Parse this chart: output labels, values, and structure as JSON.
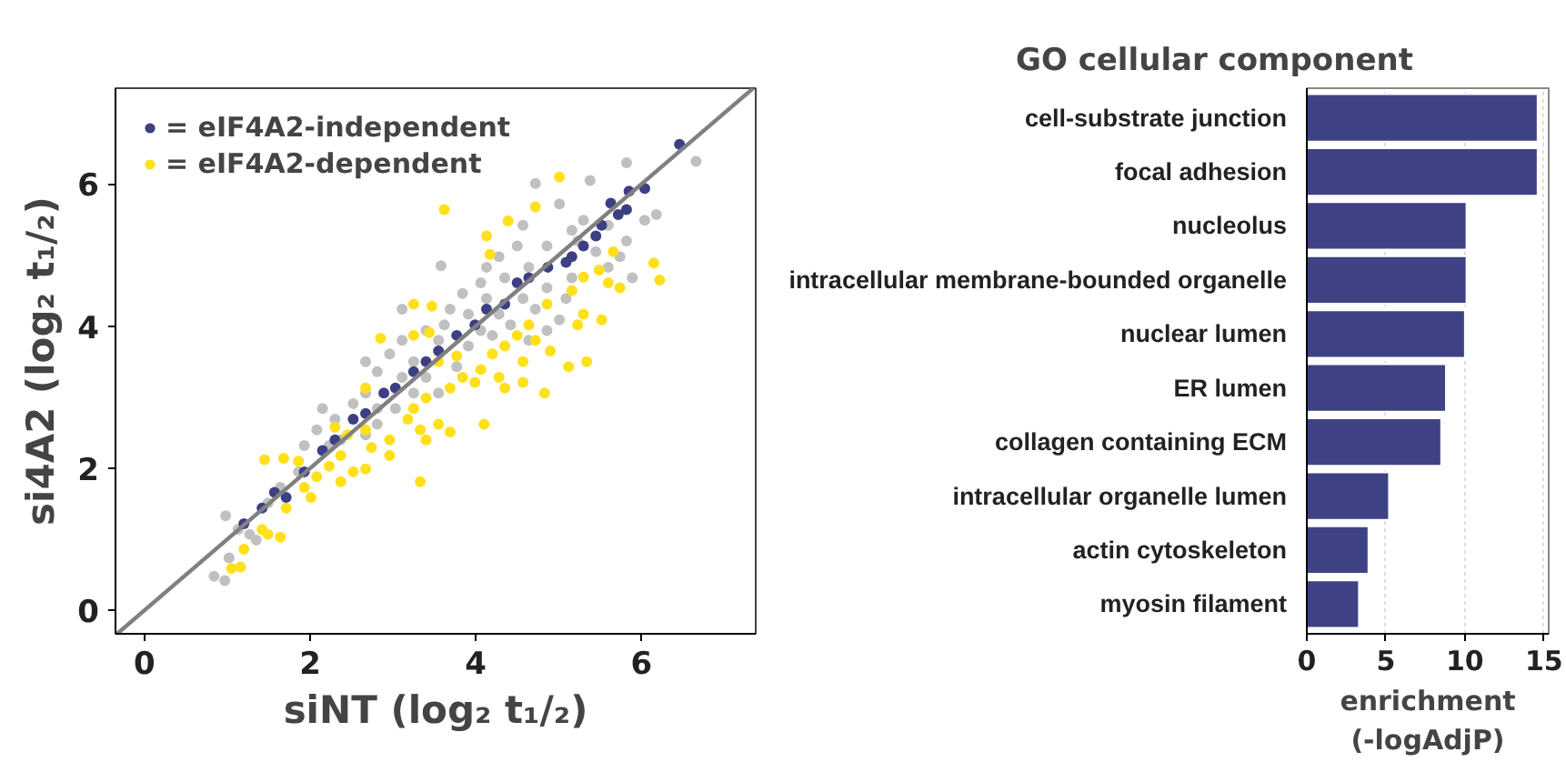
{
  "chart_data": [
    {
      "type": "scatter",
      "xlabel": "siNT (log₂ t₁/₂)",
      "ylabel": "si4A2 (log₂ t₁/₂)",
      "xlim": [
        -0.35,
        7.38
      ],
      "ylim": [
        -0.33,
        7.35
      ],
      "xticks": [
        0,
        2,
        4,
        6
      ],
      "yticks": [
        0,
        2,
        4,
        6
      ],
      "grid": false,
      "legend": "top left",
      "marker": "circle",
      "series": [
        {
          "color": "#c0c0c0",
          "x": [
            6.66,
            5.82,
            5.38,
            6.18,
            6.04,
            4.72,
            5.01,
            5.3,
            5.6,
            5.16,
            4.57,
            4.5,
            4.86,
            4.28,
            4.64,
            3.58,
            4.35,
            4.06,
            3.84,
            4.13,
            3.69,
            3.91,
            3.62,
            3.4,
            3.11,
            3.55,
            2.96,
            3.25,
            2.81,
            3.11,
            2.67,
            2.52,
            2.81,
            2.3,
            2.08,
            2.37,
            2.23,
            1.86,
            1.64,
            1.49,
            0.98,
            1.13,
            1.35,
            1.02,
            0.84,
            0.97,
            1.27,
            5.6,
            5.82,
            5.45,
            5.16,
            4.86,
            4.57,
            5.09,
            4.72,
            4.28,
            4.42,
            4.06,
            3.91,
            4.2,
            3.77,
            3.4,
            3.55,
            3.25,
            3.03,
            2.81,
            2.67,
            5.01,
            4.86,
            4.64,
            5.89,
            5.74,
            5.23,
            4.13,
            3.11,
            2.67,
            2.15,
            1.93
          ],
          "values": [
            6.32,
            6.3,
            6.05,
            5.57,
            5.49,
            6.01,
            5.72,
            5.49,
            5.42,
            5.35,
            5.42,
            5.13,
            5.13,
            4.98,
            4.83,
            4.85,
            4.68,
            4.61,
            4.46,
            4.39,
            4.24,
            4.17,
            4.02,
            3.94,
            3.8,
            3.8,
            3.61,
            3.5,
            3.36,
            3.28,
            3.06,
            2.91,
            2.84,
            2.69,
            2.54,
            2.4,
            2.32,
            1.95,
            1.73,
            1.51,
            1.33,
            1.14,
            0.99,
            0.74,
            0.48,
            0.42,
            1.07,
            4.83,
            5.2,
            5.05,
            4.68,
            4.54,
            4.39,
            4.39,
            4.24,
            4.17,
            4.02,
            3.94,
            3.72,
            3.87,
            3.43,
            3.28,
            3.06,
            3.06,
            2.84,
            2.62,
            2.47,
            4.09,
            3.94,
            3.8,
            4.68,
            4.98,
            5.2,
            4.83,
            4.24,
            3.5,
            2.84,
            2.32
          ]
        },
        {
          "name": "= eIF4A2-dependent",
          "color": "#ffe01a",
          "x": [
            5.01,
            3.62,
            4.39,
            4.72,
            4.13,
            4.17,
            6.15,
            6.22,
            5.49,
            5.6,
            5.74,
            5.16,
            5.3,
            5.52,
            4.86,
            4.64,
            4.5,
            4.35,
            4.72,
            4.9,
            4.57,
            4.2,
            4.06,
            5.34,
            5.12,
            4.83,
            4.57,
            4.35,
            3.84,
            3.69,
            3.4,
            3.25,
            3.18,
            3.55,
            3.69,
            3.4,
            4.1,
            3.33,
            2.96,
            2.74,
            2.96,
            2.67,
            2.45,
            2.37,
            2.23,
            2.52,
            2.67,
            2.08,
            1.93,
            2.37,
            2.01,
            1.71,
            1.86,
            1.45,
            1.68,
            3.33,
            1.42,
            1.64,
            1.49,
            1.2,
            1.05,
            1.16,
            3.25,
            3.44,
            3.47,
            3.25,
            2.85,
            2.67,
            2.3,
            3.55,
            3.77,
            3.99,
            4.28,
            5.3,
            5.66,
            5.23
          ],
          "values": [
            6.1,
            5.64,
            5.48,
            5.68,
            5.27,
            5.01,
            4.89,
            4.65,
            4.79,
            4.61,
            4.54,
            4.5,
            4.17,
            4.09,
            4.31,
            4.02,
            3.87,
            3.72,
            3.8,
            3.65,
            3.5,
            3.61,
            3.39,
            3.5,
            3.43,
            3.06,
            3.21,
            3.13,
            3.28,
            3.13,
            2.99,
            2.84,
            2.69,
            2.62,
            2.51,
            2.4,
            2.62,
            2.54,
            2.4,
            2.29,
            2.18,
            2.54,
            2.47,
            2.18,
            2.03,
            1.95,
            1.99,
            1.88,
            1.73,
            1.81,
            1.59,
            1.44,
            2.1,
            2.12,
            2.14,
            1.81,
            1.14,
            1.03,
            1.07,
            0.86,
            0.59,
            0.61,
            3.87,
            3.91,
            4.28,
            4.31,
            3.83,
            3.13,
            2.58,
            3.5,
            3.58,
            3.21,
            3.28,
            4.69,
            5.05,
            4.02
          ]
        },
        {
          "name": "= eIF4A2-independent",
          "color": "#3d3f85",
          "x": [
            6.46,
            5.63,
            5.85,
            5.72,
            5.45,
            5.16,
            4.87,
            4.5,
            4.13,
            3.77,
            3.4,
            3.03,
            2.67,
            2.3,
            1.93,
            1.71,
            1.42,
            1.2,
            4.35,
            3.99,
            3.55,
            3.25,
            2.89,
            2.52,
            2.15,
            1.57,
            4.64,
            5.09,
            5.3,
            5.52,
            5.82,
            6.04
          ],
          "values": [
            6.56,
            5.73,
            5.9,
            5.57,
            5.27,
            4.98,
            4.83,
            4.61,
            4.24,
            3.87,
            3.5,
            3.13,
            2.77,
            2.4,
            1.95,
            1.59,
            1.44,
            1.22,
            4.31,
            4.02,
            3.65,
            3.36,
            3.06,
            2.69,
            2.25,
            1.66,
            4.68,
            4.9,
            5.13,
            5.42,
            5.64,
            5.94
          ]
        },
        {
          "type": "line",
          "marker": "none",
          "color": "#808080",
          "x": [
            -0.33,
            7.35
          ],
          "values": [
            -0.33,
            7.35
          ]
        }
      ]
    },
    {
      "type": "bar",
      "orientation": "horizontal",
      "title": "GO cellular component",
      "xlabel": "enrichment\n(-logAdjP)",
      "categories": [
        "cell-substrate junction",
        "focal adhesion",
        "nucleolus",
        "intracellular membrane-bounded organelle",
        "nuclear lumen",
        "ER lumen",
        "collagen containing ECM",
        "intracellular organelle lumen",
        "actin cytoskeleton",
        "myosin filament"
      ],
      "values": [
        14.6,
        14.6,
        10.1,
        10.1,
        10.0,
        8.8,
        8.5,
        5.2,
        3.9,
        3.3
      ],
      "color": "#3f4185",
      "xlim": [
        0,
        15.3
      ],
      "xticks": [
        0,
        5,
        10,
        15
      ],
      "grid": "x"
    }
  ]
}
